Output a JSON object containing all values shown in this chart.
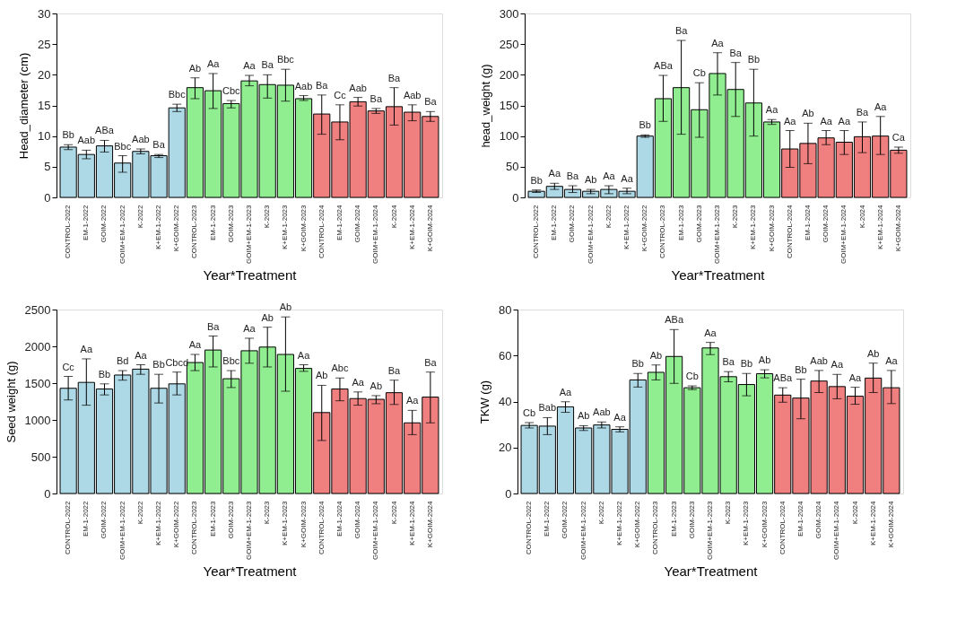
{
  "chart_data": [
    {
      "type": "bar",
      "ylabel": "Head_diameter (cm)",
      "xlabel": "Year*Treatment",
      "categories": [
        "CONTROL-2022",
        "EM-1-2022",
        "GOIM-2022",
        "GOIM+EM-1-2022",
        "K-2022",
        "K+EM-1-2022",
        "K+GOIM-2022",
        "CONTROL-2023",
        "EM-1-2023",
        "GOIM-2023",
        "GOIM+EM-1-2023",
        "K-2023",
        "K+EM-1-2023",
        "K+GOIM-2023",
        "CONTROL-2024",
        "EM-1-2024",
        "GOIM-2024",
        "GOIM+EM-1-2024",
        "K-2024",
        "K+EM-1-2024",
        "K+GOIM-2024"
      ],
      "values": [
        8.2,
        7.0,
        8.4,
        5.6,
        7.5,
        6.8,
        14.6,
        17.9,
        17.4,
        15.3,
        19.0,
        18.4,
        18.3,
        16.1,
        13.6,
        12.3,
        15.6,
        14.1,
        14.8,
        13.9,
        13.2
      ],
      "errors": [
        [
          7.8,
          8.6
        ],
        [
          6.3,
          7.7
        ],
        [
          7.4,
          9.3
        ],
        [
          4.1,
          6.8
        ],
        [
          7.1,
          7.9
        ],
        [
          6.5,
          7.0
        ],
        [
          14.0,
          15.2
        ],
        [
          16.1,
          19.5
        ],
        [
          14.5,
          20.2
        ],
        [
          14.6,
          15.8
        ],
        [
          18.2,
          19.9
        ],
        [
          16.2,
          20.0
        ],
        [
          15.7,
          20.9
        ],
        [
          15.8,
          16.6
        ],
        [
          10.3,
          16.7
        ],
        [
          9.4,
          15.1
        ],
        [
          14.9,
          16.3
        ],
        [
          13.7,
          14.5
        ],
        [
          11.8,
          17.9
        ],
        [
          12.5,
          15.1
        ],
        [
          12.4,
          14.0
        ]
      ],
      "colors": [
        "#add8e6",
        "#add8e6",
        "#add8e6",
        "#add8e6",
        "#add8e6",
        "#add8e6",
        "#add8e6",
        "#90ee90",
        "#90ee90",
        "#90ee90",
        "#90ee90",
        "#90ee90",
        "#90ee90",
        "#90ee90",
        "#f08080",
        "#f08080",
        "#f08080",
        "#f08080",
        "#f08080",
        "#f08080",
        "#f08080"
      ],
      "ylim": [
        0,
        30
      ],
      "yticks": [
        0,
        5,
        10,
        15,
        20,
        25,
        30
      ],
      "annotations": [
        "Bb",
        "Aab",
        "ABa",
        "Bbc",
        "Aab",
        "Ba",
        "Bbc",
        "Ab",
        "Aa",
        "Cbc",
        "Aa",
        "Ba",
        "Bbc",
        "Aab",
        "Ba",
        "Cc",
        "Aab",
        "Ba",
        "Ba",
        "Aab",
        "Ba"
      ]
    },
    {
      "type": "bar",
      "ylabel": "head_weight (g)",
      "xlabel": "Year*Treatment",
      "categories": [
        "CONTROL-2022",
        "EM-1-2022",
        "GOIM-2022",
        "GOIM+EM-1-2022",
        "K-2022",
        "K+EM-1-2022",
        "K+GOIM-2022",
        "CONTROL-2023",
        "EM-1-2023",
        "GOIM-2023",
        "GOIM+EM-1-2023",
        "K-2023",
        "K+EM-1-2023",
        "K+GOIM-2023",
        "CONTROL-2024",
        "EM-1-2024",
        "GOIM-2024",
        "GOIM+EM-1-2024",
        "K-2024",
        "K+EM-1-2024",
        "K+GOIM-2024"
      ],
      "values": [
        10,
        18,
        13,
        10,
        13,
        10,
        100,
        161,
        179,
        143,
        202,
        176,
        154,
        123,
        79,
        88,
        97,
        90,
        99,
        100,
        77
      ],
      "errors": [
        [
          8,
          12
        ],
        [
          13,
          23
        ],
        [
          8,
          19
        ],
        [
          6,
          13
        ],
        [
          6,
          19
        ],
        [
          6,
          15
        ],
        [
          98,
          102
        ],
        [
          124,
          199
        ],
        [
          103,
          256
        ],
        [
          98,
          187
        ],
        [
          167,
          236
        ],
        [
          132,
          220
        ],
        [
          100,
          209
        ],
        [
          119,
          127
        ],
        [
          49,
          109
        ],
        [
          55,
          121
        ],
        [
          86,
          109
        ],
        [
          70,
          109
        ],
        [
          73,
          123
        ],
        [
          70,
          132
        ],
        [
          72,
          82
        ]
      ],
      "colors": [
        "#add8e6",
        "#add8e6",
        "#add8e6",
        "#add8e6",
        "#add8e6",
        "#add8e6",
        "#add8e6",
        "#90ee90",
        "#90ee90",
        "#90ee90",
        "#90ee90",
        "#90ee90",
        "#90ee90",
        "#90ee90",
        "#f08080",
        "#f08080",
        "#f08080",
        "#f08080",
        "#f08080",
        "#f08080",
        "#f08080"
      ],
      "ylim": [
        0,
        300
      ],
      "yticks": [
        0,
        50,
        100,
        150,
        200,
        250,
        300
      ],
      "annotations": [
        "Bb",
        "Aa",
        "Ba",
        "Ab",
        "Aa",
        "Aa",
        "Bb",
        "ABa",
        "Ba",
        "Cb",
        "Aa",
        "Ba",
        "Bb",
        "Aa",
        "Aa",
        "Ab",
        "Aa",
        "Aa",
        "Ba",
        "Aa",
        "Ca"
      ]
    },
    {
      "type": "bar",
      "ylabel": "Seed weight (g)",
      "xlabel": "Year*Treatment",
      "categories": [
        "CONTROL-2022",
        "EM-1-2022",
        "GOIM-2022",
        "GOIM+EM-1-2022",
        "K-2022",
        "K+EM-1-2022",
        "K+GOIM-2022",
        "CONTROL-2023",
        "EM-1-2023",
        "GOIM-2023",
        "GOIM+EM-1-2023",
        "K-2023",
        "K+EM-1-2023",
        "K+GOIM-2023",
        "CONTROL-2024",
        "EM-1-2024",
        "GOIM-2024",
        "GOIM+EM-1-2024",
        "K-2024",
        "K+EM-1-2024",
        "K+GOIM-2024"
      ],
      "values": [
        1430,
        1510,
        1420,
        1610,
        1690,
        1430,
        1490,
        1780,
        1950,
        1560,
        1940,
        1990,
        1890,
        1700,
        1100,
        1420,
        1290,
        1280,
        1370,
        960,
        1310
      ],
      "errors": [
        [
          1270,
          1590
        ],
        [
          1200,
          1830
        ],
        [
          1340,
          1490
        ],
        [
          1540,
          1670
        ],
        [
          1620,
          1750
        ],
        [
          1230,
          1620
        ],
        [
          1340,
          1650
        ],
        [
          1670,
          1890
        ],
        [
          1720,
          2140
        ],
        [
          1440,
          1670
        ],
        [
          1770,
          2110
        ],
        [
          1720,
          2260
        ],
        [
          1390,
          2400
        ],
        [
          1660,
          1750
        ],
        [
          720,
          1470
        ],
        [
          1260,
          1570
        ],
        [
          1200,
          1380
        ],
        [
          1220,
          1330
        ],
        [
          1210,
          1540
        ],
        [
          800,
          1130
        ],
        [
          960,
          1650
        ]
      ],
      "colors": [
        "#add8e6",
        "#add8e6",
        "#add8e6",
        "#add8e6",
        "#add8e6",
        "#add8e6",
        "#add8e6",
        "#90ee90",
        "#90ee90",
        "#90ee90",
        "#90ee90",
        "#90ee90",
        "#90ee90",
        "#90ee90",
        "#f08080",
        "#f08080",
        "#f08080",
        "#f08080",
        "#f08080",
        "#f08080",
        "#f08080"
      ],
      "ylim": [
        0,
        2500
      ],
      "yticks": [
        0,
        500,
        1000,
        1500,
        2000,
        2500
      ],
      "annotations": [
        "Cc",
        "Aa",
        "Bb",
        "Bd",
        "Aa",
        "Bb",
        "Cbcd",
        "Aa",
        "Ba",
        "Bbc",
        "Aa",
        "Ab",
        "Ab",
        "Aa",
        "Ab",
        "Abc",
        "Aa",
        "Ab",
        "Ba",
        "Aa",
        "Ba"
      ]
    },
    {
      "type": "bar",
      "ylabel": "TKW (g)",
      "xlabel": "Year*Treatment",
      "categories": [
        "CONTROL-2022",
        "EM-1-2022",
        "GOIM-2022",
        "GOIM+EM-1-2022",
        "K-2022",
        "K+EM-1-2022",
        "K+GOIM-2022",
        "CONTROL-2023",
        "EM-1-2023",
        "GOIM-2023",
        "GOIM+EM-1-2023",
        "K-2023",
        "K+EM-1-2023",
        "K+GOIM-2023",
        "CONTROL-2024",
        "EM-1-2024",
        "GOIM-2024",
        "GOIM+EM-1-2024",
        "K-2024",
        "K+EM-1-2024",
        "K+GOIM-2024"
      ],
      "values": [
        29.6,
        29.3,
        37.7,
        28.5,
        29.8,
        27.9,
        49.4,
        52.7,
        59.6,
        46.0,
        63.3,
        50.8,
        47.4,
        52.1,
        42.8,
        41.5,
        48.9,
        46.5,
        42.3,
        50.2,
        46.0
      ],
      "errors": [
        [
          28.5,
          30.8
        ],
        [
          25.6,
          33.0
        ],
        [
          35.3,
          39.9
        ],
        [
          27.4,
          29.5
        ],
        [
          28.5,
          31.1
        ],
        [
          26.8,
          29.0
        ],
        [
          46.3,
          52.2
        ],
        [
          49.4,
          55.9
        ],
        [
          47.9,
          71.3
        ],
        [
          45.2,
          46.8
        ],
        [
          60.4,
          65.7
        ],
        [
          48.6,
          53.0
        ],
        [
          42.5,
          52.2
        ],
        [
          50.3,
          53.8
        ],
        [
          39.7,
          46.0
        ],
        [
          32.5,
          49.7
        ],
        [
          43.9,
          53.5
        ],
        [
          41.2,
          51.8
        ],
        [
          38.8,
          46.2
        ],
        [
          43.9,
          56.7
        ],
        [
          39.1,
          53.5
        ]
      ],
      "colors": [
        "#add8e6",
        "#add8e6",
        "#add8e6",
        "#add8e6",
        "#add8e6",
        "#add8e6",
        "#add8e6",
        "#90ee90",
        "#90ee90",
        "#90ee90",
        "#90ee90",
        "#90ee90",
        "#90ee90",
        "#90ee90",
        "#f08080",
        "#f08080",
        "#f08080",
        "#f08080",
        "#f08080",
        "#f08080",
        "#f08080"
      ],
      "ylim": [
        0,
        80
      ],
      "yticks": [
        0,
        20,
        40,
        60,
        80
      ],
      "annotations": [
        "Cb",
        "Bab",
        "Aa",
        "Ab",
        "Aab",
        "Aa",
        "Bb",
        "Ab",
        "ABa",
        "Cb",
        "Aa",
        "Ba",
        "Bb",
        "Ab",
        "ABa",
        "Bb",
        "Aab",
        "Aa",
        "Aa",
        "Ab",
        "Aa"
      ]
    }
  ]
}
